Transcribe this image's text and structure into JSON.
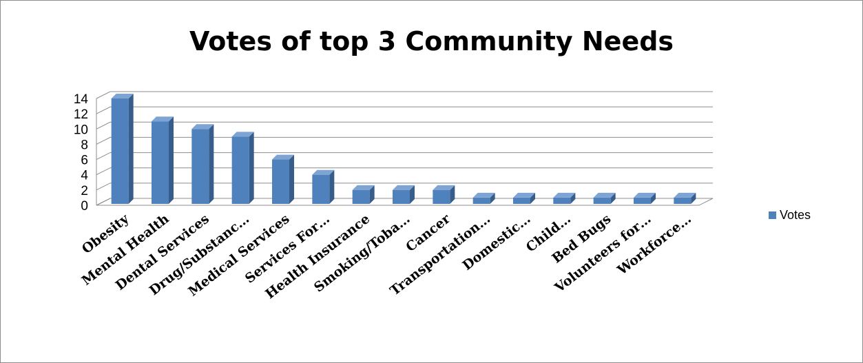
{
  "chart_data": {
    "type": "bar",
    "title": "Votes of top 3 Community Needs",
    "categories": [
      "Obesity",
      "Mental Health",
      "Dental Services",
      "Drug/Substanc…",
      "Medical Services",
      "Services For…",
      "Health Insurance",
      "Smoking/Toba…",
      "Cancer",
      "Transportation…",
      "Domestic…",
      "Child…",
      "Bed Bugs",
      "Volunteers for…",
      "Workforce…"
    ],
    "series": [
      {
        "name": "Votes",
        "values": [
          14,
          11,
          10,
          9,
          6,
          4,
          2,
          2,
          2,
          1,
          1,
          1,
          1,
          1,
          1
        ]
      }
    ],
    "ylim": [
      0,
      14
    ],
    "yticks": [
      "0",
      "2",
      "4",
      "6",
      "8",
      "10",
      "12",
      "14"
    ],
    "grid": true,
    "legend_position": "right",
    "bar_color": "#4f81bd"
  }
}
